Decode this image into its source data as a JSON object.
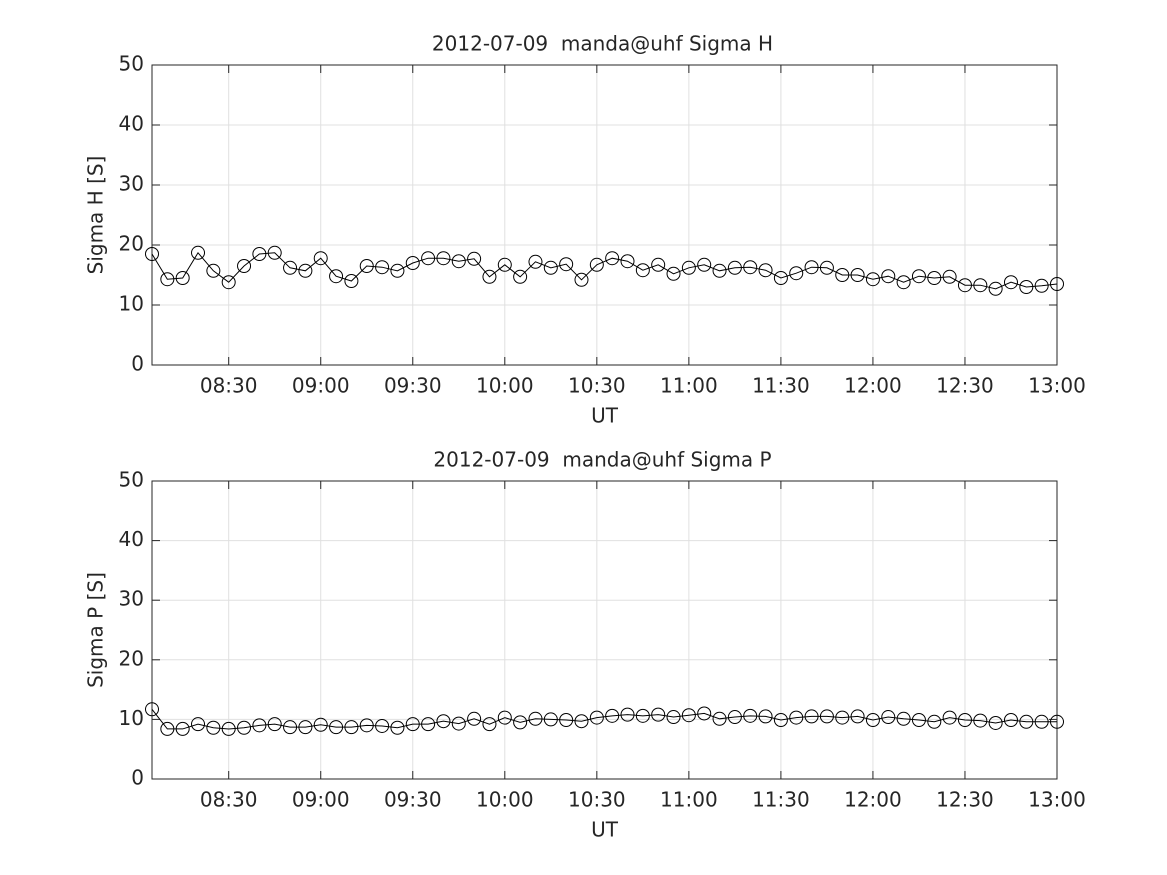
{
  "chart_data": [
    {
      "type": "line",
      "title": "2012-07-09  manda@uhf Sigma H",
      "xlabel": "UT",
      "ylabel": "Sigma H [S]",
      "x": [
        485,
        490,
        495,
        500,
        505,
        510,
        515,
        520,
        525,
        530,
        535,
        540,
        545,
        550,
        555,
        560,
        565,
        570,
        575,
        580,
        585,
        590,
        595,
        600,
        605,
        610,
        615,
        620,
        625,
        630,
        635,
        640,
        645,
        650,
        655,
        660,
        665,
        670,
        675,
        680,
        685,
        690,
        695,
        700,
        705,
        710,
        715,
        720,
        725,
        730,
        735,
        740,
        745,
        750,
        755,
        760,
        765,
        770,
        775,
        780
      ],
      "series": [
        {
          "name": "Sigma H",
          "color": "#000000",
          "values": [
            18.5,
            14.3,
            14.5,
            18.7,
            15.7,
            13.8,
            16.5,
            18.5,
            18.7,
            16.2,
            15.7,
            17.8,
            14.8,
            14,
            16.5,
            16.3,
            15.7,
            17,
            17.8,
            17.8,
            17.3,
            17.7,
            14.7,
            16.7,
            14.7,
            17.2,
            16.2,
            16.8,
            14.2,
            16.7,
            17.8,
            17.3,
            15.8,
            16.7,
            15.2,
            16.2,
            16.7,
            15.7,
            16.2,
            16.3,
            15.8,
            14.5,
            15.3,
            16.3,
            16.2,
            15,
            15,
            14.3,
            14.8,
            13.8,
            14.8,
            14.5,
            14.7,
            13.3,
            13.3,
            12.7,
            13.8,
            13,
            13.2,
            13.5
          ]
        }
      ],
      "xlim": [
        485,
        780
      ],
      "xticks": [
        {
          "value": 510,
          "label": "08:30"
        },
        {
          "value": 540,
          "label": "09:00"
        },
        {
          "value": 570,
          "label": "09:30"
        },
        {
          "value": 600,
          "label": "10:00"
        },
        {
          "value": 630,
          "label": "10:30"
        },
        {
          "value": 660,
          "label": "11:00"
        },
        {
          "value": 690,
          "label": "11:30"
        },
        {
          "value": 720,
          "label": "12:00"
        },
        {
          "value": 750,
          "label": "12:30"
        },
        {
          "value": 780,
          "label": "13:00"
        }
      ],
      "ylim": [
        0,
        50
      ],
      "yticks": [
        0,
        10,
        20,
        30,
        40,
        50
      ],
      "grid": true
    },
    {
      "type": "line",
      "title": "2012-07-09  manda@uhf Sigma P",
      "xlabel": "UT",
      "ylabel": "Sigma P [S]",
      "x": [
        485,
        490,
        495,
        500,
        505,
        510,
        515,
        520,
        525,
        530,
        535,
        540,
        545,
        550,
        555,
        560,
        565,
        570,
        575,
        580,
        585,
        590,
        595,
        600,
        605,
        610,
        615,
        620,
        625,
        630,
        635,
        640,
        645,
        650,
        655,
        660,
        665,
        670,
        675,
        680,
        685,
        690,
        695,
        700,
        705,
        710,
        715,
        720,
        725,
        730,
        735,
        740,
        745,
        750,
        755,
        760,
        765,
        770,
        775,
        780
      ],
      "series": [
        {
          "name": "Sigma P",
          "color": "#000000",
          "values": [
            11.7,
            8.4,
            8.4,
            9.2,
            8.6,
            8.4,
            8.6,
            9,
            9.2,
            8.7,
            8.7,
            9.1,
            8.7,
            8.7,
            9,
            8.9,
            8.6,
            9.2,
            9.2,
            9.7,
            9.3,
            10.1,
            9.2,
            10.3,
            9.5,
            10.1,
            10,
            9.9,
            9.7,
            10.3,
            10.6,
            10.8,
            10.6,
            10.8,
            10.4,
            10.7,
            11,
            10.1,
            10.4,
            10.6,
            10.5,
            9.9,
            10.3,
            10.5,
            10.5,
            10.3,
            10.5,
            9.9,
            10.4,
            10.1,
            9.9,
            9.6,
            10.3,
            9.9,
            9.8,
            9.4,
            9.9,
            9.6,
            9.6,
            9.6
          ]
        }
      ],
      "xlim": [
        485,
        780
      ],
      "xticks": [
        {
          "value": 510,
          "label": "08:30"
        },
        {
          "value": 540,
          "label": "09:00"
        },
        {
          "value": 570,
          "label": "09:30"
        },
        {
          "value": 600,
          "label": "10:00"
        },
        {
          "value": 630,
          "label": "10:30"
        },
        {
          "value": 660,
          "label": "11:00"
        },
        {
          "value": 690,
          "label": "11:30"
        },
        {
          "value": 720,
          "label": "12:00"
        },
        {
          "value": 750,
          "label": "12:30"
        },
        {
          "value": 780,
          "label": "13:00"
        }
      ],
      "ylim": [
        0,
        50
      ],
      "yticks": [
        0,
        10,
        20,
        30,
        40,
        50
      ],
      "grid": true
    }
  ]
}
